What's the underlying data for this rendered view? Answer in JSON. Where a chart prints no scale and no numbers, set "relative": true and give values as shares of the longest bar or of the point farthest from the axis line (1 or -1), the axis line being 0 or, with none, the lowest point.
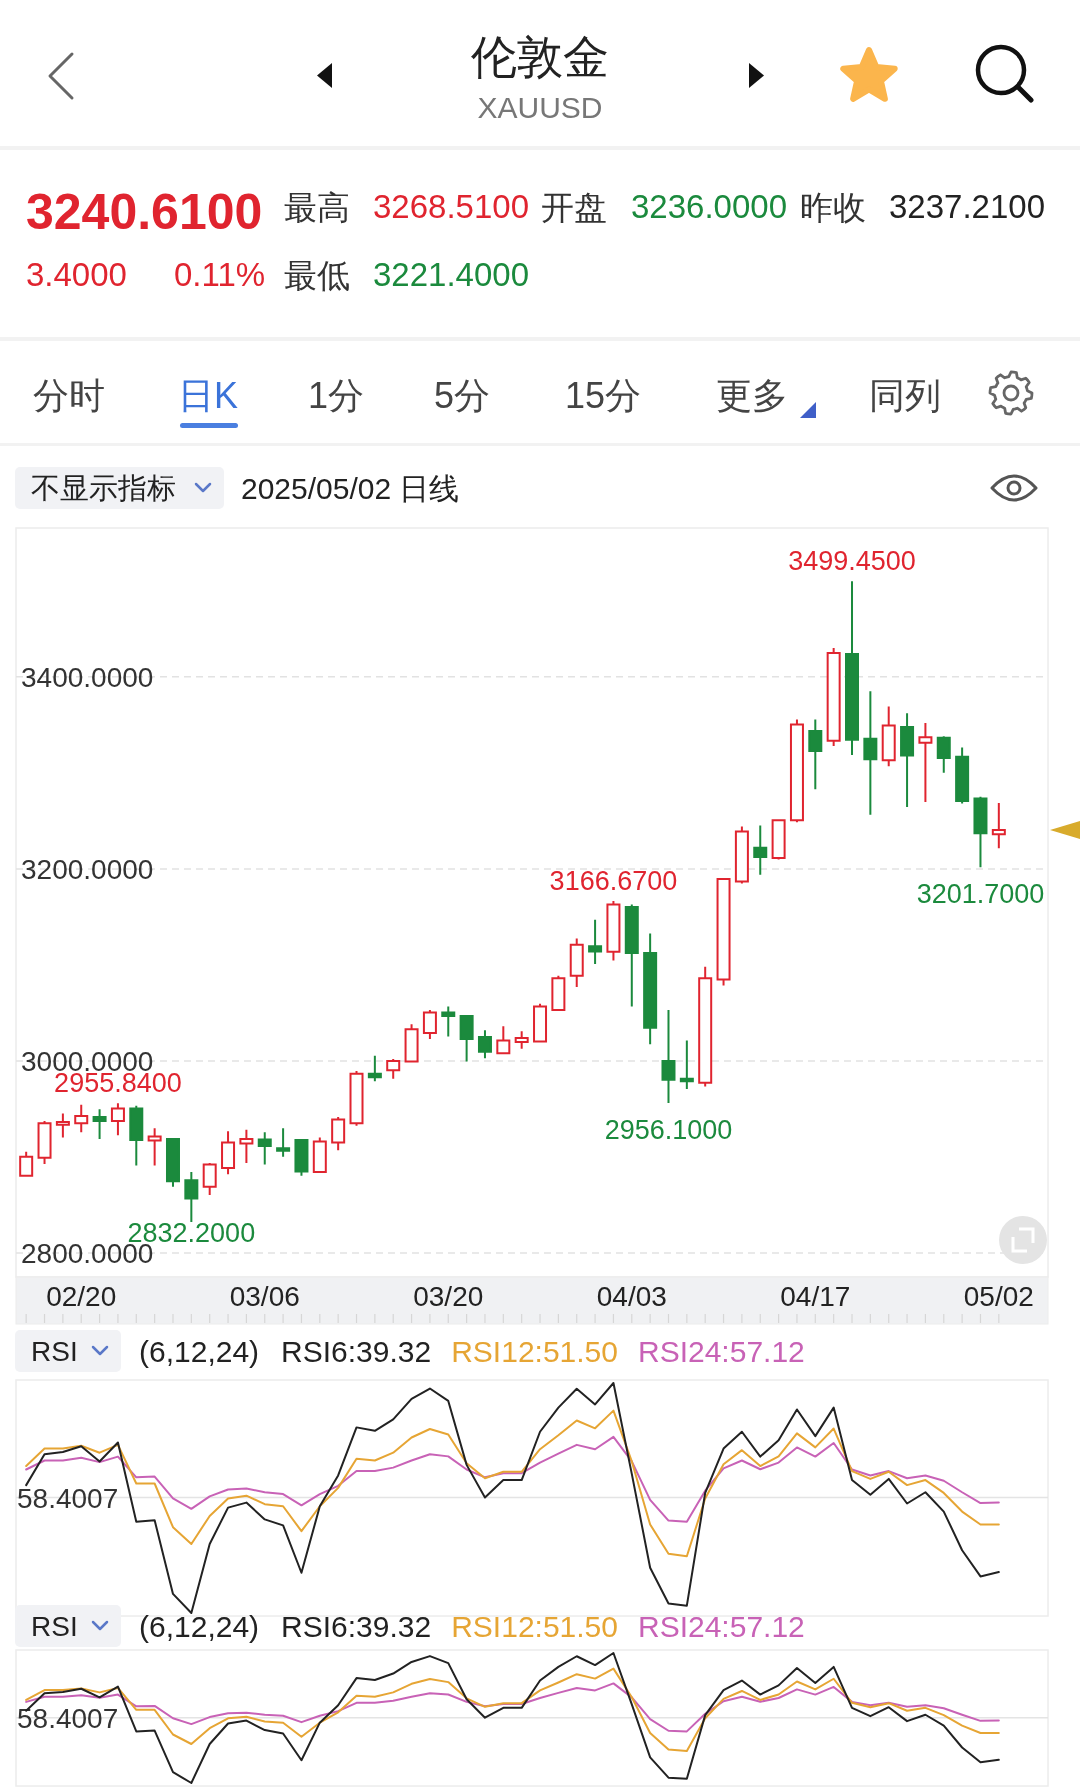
{
  "chart_data": [
    {
      "type": "other",
      "title": "伦敦金",
      "subtitle": "XAUUSD",
      "annotations": [
        "3240.6100",
        "最高",
        "3268.5100",
        "开盘",
        "3236.0000",
        "昨收",
        "3237.2100",
        "3.4000",
        "0.11%",
        "最低",
        "3221.4000",
        "分时",
        "日K",
        "1分",
        "5分",
        "15分",
        "更多",
        "同列"
      ]
    },
    {
      "type": "candlestick",
      "title": "2025/05/02 日线",
      "subtitle": "不显示指标",
      "categories": [
        null,
        null,
        null,
        "02/20",
        null,
        null,
        null,
        null,
        null,
        null,
        null,
        null,
        null,
        "03/06",
        null,
        null,
        null,
        null,
        null,
        null,
        null,
        null,
        null,
        "03/20",
        null,
        null,
        null,
        null,
        null,
        null,
        null,
        null,
        null,
        "04/03",
        null,
        null,
        null,
        null,
        null,
        null,
        null,
        null,
        null,
        "04/17",
        null,
        null,
        null,
        null,
        null,
        null,
        null,
        null,
        null,
        "05/02"
      ],
      "ohlc": [
        [
          2880.5,
          2905.5,
          2880.5,
          2900.2
        ],
        [
          2899.1,
          2937.4,
          2892.8,
          2935.2
        ],
        [
          2933.6,
          2945.3,
          2920.4,
          2936.3
        ],
        [
          2935.2,
          2954.3,
          2925.7,
          2942.7
        ],
        [
          2941.6,
          2949.6,
          2918.8,
          2937.4
        ],
        [
          2937.4,
          2955.84,
          2922.5,
          2950.6
        ],
        [
          2950.6,
          2953.3,
          2891.2,
          2917.7
        ],
        [
          2917.2,
          2929.9,
          2891.2,
          2921.4
        ],
        [
          2918.8,
          2919.5,
          2868.9,
          2874.7
        ],
        [
          2875.8,
          2884.3,
          2832.2,
          2856.7
        ],
        [
          2868.9,
          2893.8,
          2860.4,
          2892.2
        ],
        [
          2888.5,
          2926.7,
          2882.1,
          2915.1
        ],
        [
          2914.0,
          2928.3,
          2893.8,
          2918.8
        ],
        [
          2918.2,
          2925.7,
          2892.2,
          2911.3
        ],
        [
          2909.2,
          2929.9,
          2900.2,
          2906.6
        ],
        [
          2917.7,
          2918.8,
          2880.5,
          2884.8
        ],
        [
          2884.3,
          2920.4,
          2883.2,
          2916.1
        ],
        [
          2915.1,
          2941.6,
          2907.1,
          2939.0
        ],
        [
          2935.2,
          2989.4,
          2932.6,
          2986.7
        ],
        [
          2986.7,
          3005.3,
          2978.8,
          2983.0
        ],
        [
          2990.4,
          3002.1,
          2981.4,
          3000.0
        ],
        [
          2999.5,
          3038.2,
          2998.9,
          3032.9
        ],
        [
          3029.2,
          3053.1,
          3022.8,
          3050.4
        ],
        [
          3050.4,
          3056.8,
          3025.5,
          3046.7
        ],
        [
          3046.7,
          3047.8,
          2999.5,
          3022.8
        ],
        [
          3025.0,
          3031.9,
          3002.7,
          3009.6
        ],
        [
          3008.0,
          3036.1,
          3006.9,
          3021.2
        ],
        [
          3019.6,
          3030.8,
          3012.7,
          3023.9
        ],
        [
          3020.2,
          3059.5,
          3019.6,
          3056.8
        ],
        [
          3053.1,
          3088.7,
          3052.6,
          3086.0
        ],
        [
          3088.7,
          3127.4,
          3077.0,
          3121.0
        ],
        [
          3119.5,
          3147.1,
          3100.9,
          3114.1
        ],
        [
          3113.6,
          3166.67,
          3104.6,
          3163.0
        ],
        [
          3160.3,
          3163.0,
          3056.8,
          3112.5
        ],
        [
          3112.5,
          3132.7,
          3017.5,
          3034.5
        ],
        [
          3000.0,
          3053.1,
          2956.1,
          2980.4
        ],
        [
          2981.4,
          3021.2,
          2970.8,
          2978.8
        ],
        [
          2977.2,
          3098.2,
          2973.5,
          3086.0
        ],
        [
          3084.9,
          3190.6,
          3078.6,
          3189.5
        ],
        [
          3186.9,
          3244.2,
          3184.8,
          3238.9
        ],
        [
          3221.9,
          3245.3,
          3193.8,
          3212.4
        ],
        [
          3211.3,
          3251.6,
          3209.7,
          3250.6
        ],
        [
          3250.6,
          3355.7,
          3248.5,
          3350.4
        ],
        [
          3343.5,
          3355.7,
          3283.0,
          3322.8
        ],
        [
          3333.4,
          3430.0,
          3328.1,
          3424.7
        ],
        [
          3423.7,
          3499.45,
          3318.5,
          3334.5
        ],
        [
          3335.5,
          3384.9,
          3256.4,
          3314.3
        ],
        [
          3313.2,
          3369.0,
          3306.9,
          3349.3
        ],
        [
          3347.7,
          3362.1,
          3264.4,
          3318.0
        ],
        [
          3331.3,
          3352.0,
          3269.7,
          3337.1
        ],
        [
          3336.6,
          3338.2,
          3300.0,
          3315.4
        ],
        [
          3316.9,
          3326.5,
          3268.1,
          3270.8
        ],
        [
          3273.4,
          3275.0,
          3201.7,
          3237.21
        ],
        [
          3236.0,
          3268.51,
          3221.4,
          3240.61
        ]
      ],
      "colors": [
        "#e0242f",
        "#e0242f",
        "#e0242f",
        "#e0242f",
        "#1b8a3d",
        "#e0242f",
        "#1b8a3d",
        "#e0242f",
        "#1b8a3d",
        "#1b8a3d",
        "#e0242f",
        "#e0242f",
        "#e0242f",
        "#1b8a3d",
        "#1b8a3d",
        "#1b8a3d",
        "#e0242f",
        "#e0242f",
        "#e0242f",
        "#1b8a3d",
        "#e0242f",
        "#e0242f",
        "#e0242f",
        "#1b8a3d",
        "#1b8a3d",
        "#1b8a3d",
        "#e0242f",
        "#e0242f",
        "#e0242f",
        "#e0242f",
        "#e0242f",
        "#1b8a3d",
        "#e0242f",
        "#1b8a3d",
        "#1b8a3d",
        "#1b8a3d",
        "#1b8a3d",
        "#e0242f",
        "#e0242f",
        "#e0242f",
        "#1b8a3d",
        "#e0242f",
        "#e0242f",
        "#1b8a3d",
        "#e0242f",
        "#1b8a3d",
        "#1b8a3d",
        "#e0242f",
        "#1b8a3d",
        "#e0242f",
        "#1b8a3d",
        "#1b8a3d",
        "#1b8a3d",
        "#e0242f"
      ],
      "ylim": [
        2775,
        3555
      ],
      "yticks": [
        {
          "value": 2800,
          "label": "2800.0000"
        },
        {
          "value": 3000,
          "label": "3000.0000"
        },
        {
          "value": 3200,
          "label": "3200.0000"
        },
        {
          "value": 3400,
          "label": "3400.0000"
        }
      ],
      "grid": "y",
      "annotations": [
        {
          "text": "2955.8400",
          "y": 2955.84
        },
        {
          "text": "2832.2000",
          "y": 2832.2
        },
        {
          "text": "3166.6700",
          "y": 3166.67
        },
        {
          "text": "2956.1000",
          "y": 2956.1
        },
        {
          "text": "3499.4500",
          "y": 3499.45
        },
        {
          "text": "3201.7000",
          "y": 3201.7
        }
      ]
    },
    {
      "type": "line",
      "title": "RSI",
      "subtitle": "(6,12,24)",
      "relative": true,
      "categories": [
        null,
        null,
        null,
        null,
        null,
        null,
        null,
        null,
        null,
        null,
        null,
        null,
        null,
        null,
        null,
        null,
        null,
        null,
        null,
        null,
        null,
        null,
        null,
        null,
        null,
        null,
        null,
        null,
        null,
        null,
        null,
        null,
        null,
        null,
        null,
        null,
        null,
        null,
        null,
        null,
        null,
        null,
        null,
        null,
        null,
        null,
        null,
        null,
        null,
        null,
        null,
        null,
        null,
        null
      ],
      "series": [
        {
          "name": "RSI6:39.32",
          "color": "#222222",
          "values": [
            0.556,
            0.69,
            0.7,
            0.725,
            0.659,
            0.741,
            0.397,
            0.403,
            0.083,
            0,
            0.3,
            0.458,
            0.48,
            0.407,
            0.381,
            0.175,
            0.464,
            0.598,
            0.807,
            0.792,
            0.842,
            0.931,
            0.976,
            0.922,
            0.644,
            0.502,
            0.578,
            0.578,
            0.788,
            0.893,
            0.975,
            0.907,
            1,
            0.605,
            0.197,
            0.041,
            0.032,
            0.522,
            0.715,
            0.788,
            0.68,
            0.751,
            0.885,
            0.769,
            0.893,
            0.578,
            0.514,
            0.583,
            0.476,
            0.525,
            0.441,
            0.273,
            0.159,
            0.178
          ]
        },
        {
          "name": "RSI12:51.50",
          "color": "#e6a534",
          "values": [
            0.639,
            0.715,
            0.715,
            0.727,
            0.697,
            0.731,
            0.563,
            0.563,
            0.373,
            0.3,
            0.422,
            0.498,
            0.51,
            0.473,
            0.464,
            0.356,
            0.464,
            0.544,
            0.671,
            0.663,
            0.697,
            0.763,
            0.8,
            0.776,
            0.651,
            0.586,
            0.614,
            0.614,
            0.712,
            0.773,
            0.837,
            0.803,
            0.88,
            0.659,
            0.385,
            0.258,
            0.247,
            0.498,
            0.647,
            0.708,
            0.639,
            0.681,
            0.781,
            0.72,
            0.802,
            0.617,
            0.583,
            0.614,
            0.556,
            0.578,
            0.522,
            0.441,
            0.385,
            0.385
          ]
        },
        {
          "name": "RSI24:57.12",
          "color": "#c862b6",
          "values": [
            0.624,
            0.663,
            0.663,
            0.675,
            0.656,
            0.68,
            0.59,
            0.593,
            0.498,
            0.453,
            0.507,
            0.537,
            0.541,
            0.525,
            0.517,
            0.468,
            0.517,
            0.553,
            0.617,
            0.617,
            0.632,
            0.663,
            0.69,
            0.681,
            0.624,
            0.59,
            0.608,
            0.608,
            0.654,
            0.693,
            0.731,
            0.712,
            0.766,
            0.659,
            0.492,
            0.402,
            0.397,
            0.532,
            0.629,
            0.663,
            0.625,
            0.654,
            0.72,
            0.68,
            0.739,
            0.624,
            0.598,
            0.617,
            0.586,
            0.598,
            0.575,
            0.525,
            0.478,
            0.48
          ]
        }
      ],
      "ref_lines": [
        {
          "axis": "y",
          "value": 0.502,
          "color": "#e4e4e4"
        }
      ],
      "annotations": [
        "58.4007"
      ],
      "legend": "top left"
    },
    {
      "type": "line",
      "title": "RSI",
      "subtitle": "(6,12,24)",
      "relative": true,
      "categories": [
        null,
        null,
        null,
        null,
        null,
        null,
        null,
        null,
        null,
        null,
        null,
        null,
        null,
        null,
        null,
        null,
        null,
        null,
        null,
        null,
        null,
        null,
        null,
        null,
        null,
        null,
        null,
        null,
        null,
        null,
        null,
        null,
        null,
        null,
        null,
        null,
        null,
        null,
        null,
        null,
        null,
        null,
        null,
        null,
        null,
        null,
        null,
        null,
        null,
        null,
        null,
        null,
        null,
        null
      ],
      "series": [
        {
          "name": "RSI6:39.32",
          "color": "#222222",
          "values": [
            0.556,
            0.69,
            0.7,
            0.725,
            0.659,
            0.741,
            0.397,
            0.403,
            0.083,
            0,
            0.3,
            0.458,
            0.48,
            0.407,
            0.381,
            0.175,
            0.464,
            0.598,
            0.807,
            0.792,
            0.842,
            0.931,
            0.976,
            0.922,
            0.644,
            0.502,
            0.578,
            0.578,
            0.788,
            0.893,
            0.975,
            0.907,
            1,
            0.605,
            0.197,
            0.041,
            0.032,
            0.522,
            0.715,
            0.788,
            0.68,
            0.751,
            0.885,
            0.769,
            0.893,
            0.578,
            0.514,
            0.583,
            0.476,
            0.525,
            0.441,
            0.273,
            0.159,
            0.178
          ]
        },
        {
          "name": "RSI12:51.50",
          "color": "#e6a534",
          "values": [
            0.639,
            0.715,
            0.715,
            0.727,
            0.697,
            0.731,
            0.563,
            0.563,
            0.373,
            0.3,
            0.422,
            0.498,
            0.51,
            0.473,
            0.464,
            0.356,
            0.464,
            0.544,
            0.671,
            0.663,
            0.697,
            0.763,
            0.8,
            0.776,
            0.651,
            0.586,
            0.614,
            0.614,
            0.712,
            0.773,
            0.837,
            0.803,
            0.88,
            0.659,
            0.385,
            0.258,
            0.247,
            0.498,
            0.647,
            0.708,
            0.639,
            0.681,
            0.781,
            0.72,
            0.802,
            0.617,
            0.583,
            0.614,
            0.556,
            0.578,
            0.522,
            0.441,
            0.385,
            0.385
          ]
        },
        {
          "name": "RSI24:57.12",
          "color": "#c862b6",
          "values": [
            0.624,
            0.663,
            0.663,
            0.675,
            0.656,
            0.68,
            0.59,
            0.593,
            0.498,
            0.453,
            0.507,
            0.537,
            0.541,
            0.525,
            0.517,
            0.468,
            0.517,
            0.553,
            0.617,
            0.617,
            0.632,
            0.663,
            0.69,
            0.681,
            0.624,
            0.59,
            0.608,
            0.608,
            0.654,
            0.693,
            0.731,
            0.712,
            0.766,
            0.659,
            0.492,
            0.402,
            0.397,
            0.532,
            0.629,
            0.663,
            0.625,
            0.654,
            0.72,
            0.68,
            0.739,
            0.624,
            0.598,
            0.617,
            0.586,
            0.598,
            0.575,
            0.525,
            0.478,
            0.48
          ]
        }
      ],
      "ref_lines": [
        {
          "axis": "y",
          "value": 0.502,
          "color": "#e4e4e4"
        }
      ],
      "annotations": [
        "58.4007"
      ],
      "legend": "top left"
    }
  ]
}
